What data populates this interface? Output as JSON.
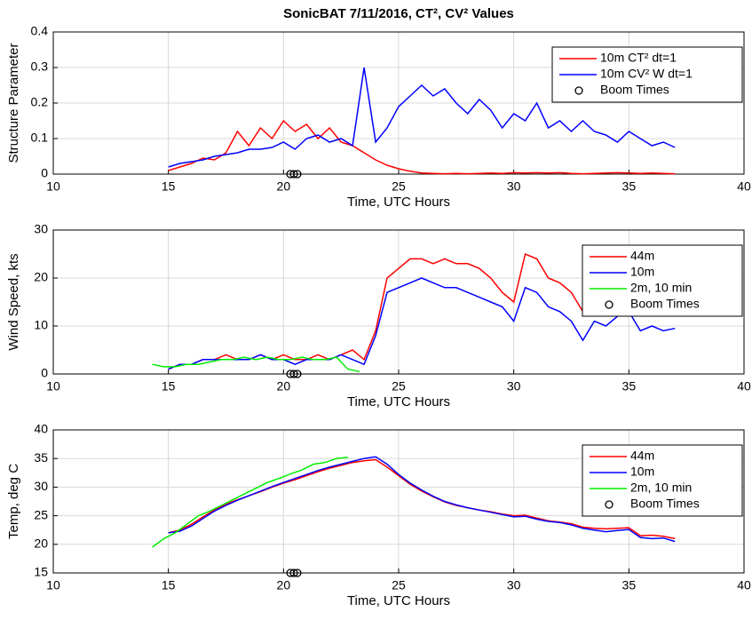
{
  "chart_data": [
    {
      "type": "line",
      "title": "SonicBAT 7/11/2016, CT², CV² Values",
      "xlabel": "Time, UTC Hours",
      "ylabel": "Structure Parameter",
      "xlim": [
        10,
        40
      ],
      "xticks": [
        10,
        15,
        20,
        25,
        30,
        35,
        40
      ],
      "ylim": [
        0,
        0.4
      ],
      "yticks": [
        0,
        0.1,
        0.2,
        0.3,
        0.4
      ],
      "grid": true,
      "legend": "upper right",
      "series": [
        {
          "name": "10m CT² dt=1",
          "color": "#ff0000",
          "x": [
            15,
            15.5,
            16,
            16.5,
            17,
            17.5,
            18,
            18.5,
            19,
            19.5,
            20,
            20.5,
            21,
            21.5,
            22,
            22.5,
            23,
            23.5,
            24,
            24.5,
            25,
            25.5,
            26,
            26.5,
            27,
            27.5,
            28,
            28.5,
            29,
            29.5,
            30,
            30.5,
            31,
            31.5,
            32,
            32.5,
            33,
            33.5,
            34,
            34.5,
            35,
            35.5,
            36,
            36.5,
            37
          ],
          "values": [
            0.01,
            0.02,
            0.03,
            0.045,
            0.04,
            0.06,
            0.12,
            0.08,
            0.13,
            0.1,
            0.15,
            0.12,
            0.14,
            0.1,
            0.13,
            0.09,
            0.08,
            0.06,
            0.04,
            0.025,
            0.015,
            0.008,
            0.003,
            0.002,
            0.001,
            0.002,
            0.001,
            0.002,
            0.003,
            0.002,
            0.004,
            0.003,
            0.004,
            0.003,
            0.004,
            0.002,
            0.001,
            0.002,
            0.003,
            0.004,
            0.003,
            0.002,
            0.003,
            0.002,
            0.001
          ]
        },
        {
          "name": "10m CV² W dt=1",
          "color": "#0000ff",
          "x": [
            15,
            15.5,
            16,
            16.5,
            17,
            17.5,
            18,
            18.5,
            19,
            19.5,
            20,
            20.5,
            21,
            21.5,
            22,
            22.5,
            23,
            23.5,
            24,
            24.5,
            25,
            25.5,
            26,
            26.5,
            27,
            27.5,
            28,
            28.5,
            29,
            29.5,
            30,
            30.5,
            31,
            31.5,
            32,
            32.5,
            33,
            33.5,
            34,
            34.5,
            35,
            35.5,
            36,
            36.5,
            37
          ],
          "values": [
            0.02,
            0.03,
            0.035,
            0.04,
            0.05,
            0.055,
            0.06,
            0.07,
            0.07,
            0.075,
            0.09,
            0.07,
            0.1,
            0.11,
            0.09,
            0.1,
            0.08,
            0.3,
            0.09,
            0.13,
            0.19,
            0.22,
            0.25,
            0.22,
            0.24,
            0.2,
            0.17,
            0.21,
            0.18,
            0.13,
            0.17,
            0.15,
            0.2,
            0.13,
            0.15,
            0.12,
            0.15,
            0.12,
            0.11,
            0.09,
            0.12,
            0.1,
            0.08,
            0.09,
            0.075
          ]
        },
        {
          "name": "Boom Times",
          "color": "#000000",
          "marker": "circle",
          "x": [
            20.3,
            20.45,
            20.6
          ],
          "values": [
            0,
            0,
            0
          ]
        }
      ]
    },
    {
      "type": "line",
      "xlabel": "Time, UTC Hours",
      "ylabel": "Wind Speed, kts",
      "xlim": [
        10,
        40
      ],
      "xticks": [
        10,
        15,
        20,
        25,
        30,
        35,
        40
      ],
      "ylim": [
        0,
        30
      ],
      "yticks": [
        0,
        10,
        20,
        30
      ],
      "grid": true,
      "legend": "upper right",
      "series": [
        {
          "name": "44m",
          "color": "#ff0000",
          "x": [
            15,
            15.5,
            16,
            16.5,
            17,
            17.5,
            18,
            18.5,
            19,
            19.5,
            20,
            20.5,
            21,
            21.5,
            22,
            22.5,
            23,
            23.5,
            24,
            24.5,
            25,
            25.5,
            26,
            26.5,
            27,
            27.5,
            28,
            28.5,
            29,
            29.5,
            30,
            30.5,
            31,
            31.5,
            32,
            32.5,
            33,
            33.5,
            34,
            34.5,
            35,
            35.5,
            36,
            36.5,
            37
          ],
          "values": [
            1,
            2,
            2,
            3,
            3,
            4,
            3,
            3,
            4,
            3,
            4,
            3,
            3,
            4,
            3,
            4,
            5,
            3,
            9,
            20,
            22,
            24,
            24,
            23,
            24,
            23,
            23,
            22,
            20,
            17,
            15,
            25,
            24,
            20,
            19,
            17,
            13,
            16,
            14,
            17,
            20,
            18,
            16,
            13,
            15
          ]
        },
        {
          "name": "10m",
          "color": "#0000ff",
          "x": [
            15,
            15.5,
            16,
            16.5,
            17,
            17.5,
            18,
            18.5,
            19,
            19.5,
            20,
            20.5,
            21,
            21.5,
            22,
            22.5,
            23,
            23.5,
            24,
            24.5,
            25,
            25.5,
            26,
            26.5,
            27,
            27.5,
            28,
            28.5,
            29,
            29.5,
            30,
            30.5,
            31,
            31.5,
            32,
            32.5,
            33,
            33.5,
            34,
            34.5,
            35,
            35.5,
            36,
            36.5,
            37
          ],
          "values": [
            1,
            2,
            2,
            3,
            3,
            3,
            3,
            3,
            4,
            3,
            3,
            2,
            3,
            3,
            3,
            4,
            3,
            2,
            8,
            17,
            18,
            19,
            20,
            19,
            18,
            18,
            17,
            16,
            15,
            14,
            11,
            18,
            17,
            14,
            13,
            11,
            7,
            11,
            10,
            12,
            13,
            9,
            10,
            9,
            9.5
          ]
        },
        {
          "name": "2m, 10 min",
          "color": "#00ee00",
          "x": [
            14.3,
            14.8,
            15.3,
            15.8,
            16.3,
            16.8,
            17.3,
            17.8,
            18.3,
            18.8,
            19.3,
            19.8,
            20.3,
            20.8,
            21.3,
            21.8,
            22.3,
            22.8,
            23.3
          ],
          "values": [
            2,
            1.5,
            1.5,
            2,
            2,
            2.5,
            3,
            3,
            3.5,
            3,
            3.5,
            3,
            3,
            3.5,
            3,
            3,
            3.5,
            1,
            0.5
          ]
        },
        {
          "name": "Boom Times",
          "color": "#000000",
          "marker": "circle",
          "x": [
            20.3,
            20.45,
            20.6
          ],
          "values": [
            0,
            0,
            0
          ]
        }
      ]
    },
    {
      "type": "line",
      "xlabel": "Time, UTC Hours",
      "ylabel": "Temp, deg C",
      "xlim": [
        10,
        40
      ],
      "xticks": [
        10,
        15,
        20,
        25,
        30,
        35,
        40
      ],
      "ylim": [
        15,
        40
      ],
      "yticks": [
        15,
        20,
        25,
        30,
        35,
        40
      ],
      "grid": true,
      "legend": "upper right",
      "series": [
        {
          "name": "44m",
          "color": "#ff0000",
          "x": [
            15,
            15.5,
            16,
            16.5,
            17,
            17.5,
            18,
            18.5,
            19,
            19.5,
            20,
            20.5,
            21,
            21.5,
            22,
            22.5,
            23,
            23.5,
            24,
            24.5,
            25,
            25.5,
            26,
            26.5,
            27,
            27.5,
            28,
            28.5,
            29,
            29.5,
            30,
            30.5,
            31,
            31.5,
            32,
            32.5,
            33,
            33.5,
            34,
            34.5,
            35,
            35.5,
            36,
            36.5,
            37
          ],
          "values": [
            22,
            22.5,
            23.5,
            24.8,
            26,
            27,
            27.8,
            28.5,
            29.2,
            30,
            30.7,
            31.3,
            32,
            32.7,
            33.3,
            33.8,
            34.3,
            34.6,
            34.8,
            33.5,
            32,
            30.5,
            29.3,
            28.3,
            27.4,
            26.8,
            26.4,
            26,
            25.7,
            25.3,
            25,
            25.1,
            24.6,
            24.1,
            23.9,
            23.6,
            23,
            22.8,
            22.7,
            22.8,
            22.9,
            21.5,
            21.6,
            21.4,
            21
          ]
        },
        {
          "name": "10m",
          "color": "#0000ff",
          "x": [
            15,
            15.5,
            16,
            16.5,
            17,
            17.5,
            18,
            18.5,
            19,
            19.5,
            20,
            20.5,
            21,
            21.5,
            22,
            22.5,
            23,
            23.5,
            24,
            24.5,
            25,
            25.5,
            26,
            26.5,
            27,
            27.5,
            28,
            28.5,
            29,
            29.5,
            30,
            30.5,
            31,
            31.5,
            32,
            32.5,
            33,
            33.5,
            34,
            34.5,
            35,
            35.5,
            36,
            36.5,
            37
          ],
          "values": [
            22,
            22.3,
            23.2,
            24.5,
            25.8,
            26.8,
            27.7,
            28.5,
            29.3,
            30.1,
            30.8,
            31.5,
            32.2,
            32.9,
            33.5,
            34,
            34.5,
            35,
            35.3,
            34,
            32.2,
            30.7,
            29.5,
            28.4,
            27.5,
            26.9,
            26.4,
            26,
            25.6,
            25.2,
            24.8,
            24.9,
            24.4,
            24,
            23.8,
            23.4,
            22.8,
            22.5,
            22.2,
            22.4,
            22.6,
            21.2,
            21,
            21.1,
            20.5
          ]
        },
        {
          "name": "2m, 10 min",
          "color": "#00ee00",
          "x": [
            14.3,
            14.8,
            15.3,
            15.8,
            16.3,
            16.8,
            17.3,
            17.8,
            18.3,
            18.8,
            19.3,
            19.8,
            20.3,
            20.8,
            21.3,
            21.8,
            22.3,
            22.8
          ],
          "values": [
            19.5,
            21,
            22,
            23.5,
            25,
            25.8,
            26.8,
            27.8,
            28.8,
            29.8,
            30.8,
            31.5,
            32.3,
            33,
            34,
            34.3,
            35,
            35.2
          ]
        },
        {
          "name": "Boom Times",
          "color": "#000000",
          "marker": "circle",
          "x": [
            20.3,
            20.45,
            20.6
          ],
          "values": [
            15,
            15,
            15
          ]
        }
      ]
    }
  ]
}
